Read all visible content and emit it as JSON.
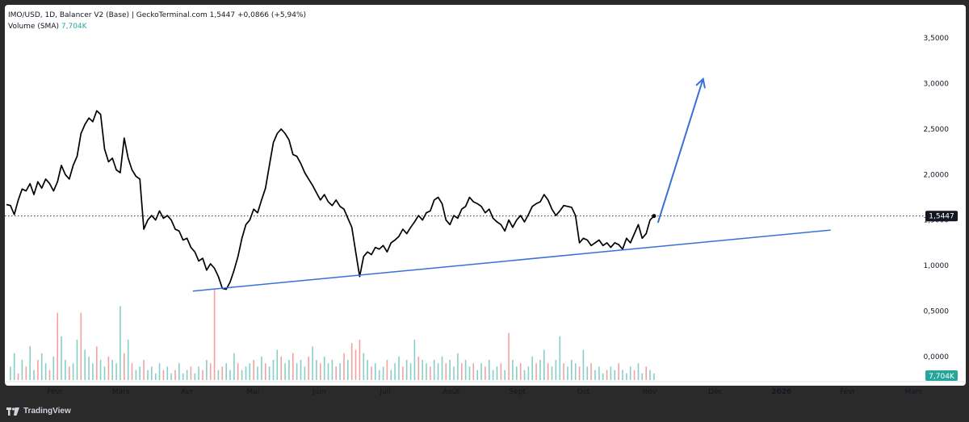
{
  "header": {
    "symbol_line": "IMO/USD, 1D, Balancer V2 (Base) | GeckoTerminal.com",
    "price": "1,5447",
    "change": "+0,0866 (+5,94%)",
    "volume_label": "Volume (SMA)",
    "volume_value": "7,704K"
  },
  "branding": {
    "name": "TradingView"
  },
  "colors": {
    "line": "#000000",
    "trendline": "#3a6fd8",
    "arrow": "#3a6fd8",
    "vol_up": "#26a69a",
    "vol_down": "#ef5350",
    "price_tag_bg": "#131722",
    "vol_tag_bg": "#26a69a"
  },
  "chart_data": {
    "type": "line",
    "y_ticks": [
      "3,5000",
      "3,0000",
      "2,5000",
      "2,0000",
      "1,5000",
      "1,0000",
      "0,5000",
      "0,0000"
    ],
    "y_tick_values": [
      3.5,
      3.0,
      2.5,
      2.0,
      1.5,
      1.0,
      0.5,
      0.0
    ],
    "ylim": [
      -0.25,
      3.75
    ],
    "x_ticks": [
      "Févr",
      "Mars",
      "Avr",
      "Mai",
      "Juin",
      "Juil",
      "Août",
      "Sept",
      "Oct",
      "Nov",
      "Déc",
      "2026",
      "Févr",
      "Mars"
    ],
    "x_tick_bold": [
      false,
      false,
      false,
      false,
      false,
      false,
      false,
      false,
      false,
      false,
      false,
      true,
      false,
      false
    ],
    "last_price_label": "1,5447",
    "last_price": 1.5447,
    "volume_last_label": "7,704K",
    "price_series": [
      [
        0,
        1.67
      ],
      [
        2,
        1.66
      ],
      [
        4,
        1.56
      ],
      [
        6,
        1.72
      ],
      [
        8,
        1.84
      ],
      [
        10,
        1.82
      ],
      [
        12,
        1.9
      ],
      [
        14,
        1.78
      ],
      [
        16,
        1.92
      ],
      [
        18,
        1.85
      ],
      [
        20,
        1.95
      ],
      [
        22,
        1.9
      ],
      [
        24,
        1.82
      ],
      [
        26,
        1.92
      ],
      [
        28,
        2.1
      ],
      [
        30,
        2.0
      ],
      [
        32,
        1.95
      ],
      [
        34,
        2.1
      ],
      [
        36,
        2.2
      ],
      [
        38,
        2.45
      ],
      [
        40,
        2.55
      ],
      [
        42,
        2.62
      ],
      [
        44,
        2.58
      ],
      [
        46,
        2.7
      ],
      [
        48,
        2.66
      ],
      [
        50,
        2.28
      ],
      [
        52,
        2.14
      ],
      [
        54,
        2.18
      ],
      [
        56,
        2.05
      ],
      [
        58,
        2.02
      ],
      [
        60,
        2.4
      ],
      [
        62,
        2.18
      ],
      [
        64,
        2.05
      ],
      [
        66,
        1.98
      ],
      [
        68,
        1.95
      ],
      [
        70,
        1.4
      ],
      [
        72,
        1.5
      ],
      [
        74,
        1.55
      ],
      [
        76,
        1.5
      ],
      [
        78,
        1.6
      ],
      [
        80,
        1.52
      ],
      [
        82,
        1.55
      ],
      [
        84,
        1.5
      ],
      [
        86,
        1.4
      ],
      [
        88,
        1.38
      ],
      [
        90,
        1.28
      ],
      [
        92,
        1.3
      ],
      [
        94,
        1.2
      ],
      [
        96,
        1.15
      ],
      [
        98,
        1.05
      ],
      [
        100,
        1.08
      ],
      [
        102,
        0.95
      ],
      [
        104,
        1.02
      ],
      [
        106,
        0.97
      ],
      [
        108,
        0.88
      ],
      [
        110,
        0.75
      ],
      [
        112,
        0.74
      ],
      [
        114,
        0.82
      ],
      [
        116,
        0.95
      ],
      [
        118,
        1.1
      ],
      [
        120,
        1.3
      ],
      [
        122,
        1.45
      ],
      [
        124,
        1.5
      ],
      [
        126,
        1.62
      ],
      [
        128,
        1.58
      ],
      [
        130,
        1.72
      ],
      [
        132,
        1.85
      ],
      [
        134,
        2.1
      ],
      [
        136,
        2.35
      ],
      [
        138,
        2.45
      ],
      [
        140,
        2.5
      ],
      [
        142,
        2.45
      ],
      [
        144,
        2.38
      ],
      [
        146,
        2.22
      ],
      [
        148,
        2.2
      ],
      [
        150,
        2.12
      ],
      [
        152,
        2.02
      ],
      [
        154,
        1.95
      ],
      [
        156,
        1.88
      ],
      [
        158,
        1.8
      ],
      [
        160,
        1.72
      ],
      [
        162,
        1.78
      ],
      [
        164,
        1.7
      ],
      [
        166,
        1.66
      ],
      [
        168,
        1.72
      ],
      [
        170,
        1.65
      ],
      [
        172,
        1.62
      ],
      [
        174,
        1.52
      ],
      [
        176,
        1.42
      ],
      [
        178,
        1.15
      ],
      [
        180,
        0.88
      ],
      [
        182,
        1.1
      ],
      [
        184,
        1.15
      ],
      [
        186,
        1.12
      ],
      [
        188,
        1.2
      ],
      [
        190,
        1.18
      ],
      [
        192,
        1.22
      ],
      [
        194,
        1.15
      ],
      [
        196,
        1.25
      ],
      [
        198,
        1.28
      ],
      [
        200,
        1.32
      ],
      [
        202,
        1.4
      ],
      [
        204,
        1.35
      ],
      [
        206,
        1.42
      ],
      [
        208,
        1.48
      ],
      [
        210,
        1.55
      ],
      [
        212,
        1.5
      ],
      [
        214,
        1.58
      ],
      [
        216,
        1.6
      ],
      [
        218,
        1.72
      ],
      [
        220,
        1.75
      ],
      [
        222,
        1.68
      ],
      [
        224,
        1.5
      ],
      [
        226,
        1.45
      ],
      [
        228,
        1.55
      ],
      [
        230,
        1.52
      ],
      [
        232,
        1.62
      ],
      [
        234,
        1.65
      ],
      [
        236,
        1.75
      ],
      [
        238,
        1.7
      ],
      [
        240,
        1.68
      ],
      [
        242,
        1.65
      ],
      [
        244,
        1.58
      ],
      [
        246,
        1.62
      ],
      [
        248,
        1.52
      ],
      [
        250,
        1.48
      ],
      [
        252,
        1.45
      ],
      [
        254,
        1.38
      ],
      [
        256,
        1.5
      ],
      [
        258,
        1.42
      ],
      [
        260,
        1.5
      ],
      [
        262,
        1.55
      ],
      [
        264,
        1.48
      ],
      [
        266,
        1.56
      ],
      [
        268,
        1.65
      ],
      [
        270,
        1.68
      ],
      [
        272,
        1.7
      ],
      [
        274,
        1.78
      ],
      [
        276,
        1.72
      ],
      [
        278,
        1.62
      ],
      [
        280,
        1.55
      ],
      [
        282,
        1.6
      ],
      [
        284,
        1.66
      ],
      [
        286,
        1.65
      ],
      [
        288,
        1.64
      ],
      [
        290,
        1.55
      ],
      [
        292,
        1.25
      ],
      [
        294,
        1.3
      ],
      [
        296,
        1.28
      ],
      [
        298,
        1.22
      ],
      [
        300,
        1.25
      ],
      [
        302,
        1.28
      ],
      [
        304,
        1.22
      ],
      [
        306,
        1.25
      ],
      [
        308,
        1.2
      ],
      [
        310,
        1.25
      ],
      [
        312,
        1.23
      ],
      [
        314,
        1.18
      ],
      [
        316,
        1.3
      ],
      [
        318,
        1.25
      ],
      [
        320,
        1.35
      ],
      [
        322,
        1.45
      ],
      [
        324,
        1.3
      ],
      [
        326,
        1.35
      ],
      [
        328,
        1.5
      ],
      [
        330,
        1.5447
      ]
    ],
    "trendline": [
      [
        95,
        0.72
      ],
      [
        420,
        1.39
      ]
    ],
    "arrow": [
      [
        332,
        1.47
      ],
      [
        355,
        3.05
      ]
    ],
    "volume": [
      [
        2,
        0.04,
        1
      ],
      [
        4,
        0.08,
        1
      ],
      [
        6,
        0.02,
        0
      ],
      [
        8,
        0.06,
        1
      ],
      [
        10,
        0.04,
        0
      ],
      [
        12,
        0.1,
        1
      ],
      [
        14,
        0.03,
        1
      ],
      [
        16,
        0.06,
        0
      ],
      [
        18,
        0.08,
        1
      ],
      [
        20,
        0.05,
        1
      ],
      [
        22,
        0.03,
        0
      ],
      [
        24,
        0.07,
        1
      ],
      [
        26,
        0.2,
        0
      ],
      [
        28,
        0.13,
        1
      ],
      [
        30,
        0.06,
        1
      ],
      [
        32,
        0.04,
        0
      ],
      [
        34,
        0.05,
        1
      ],
      [
        36,
        0.12,
        1
      ],
      [
        38,
        0.2,
        0
      ],
      [
        40,
        0.09,
        1
      ],
      [
        42,
        0.07,
        1
      ],
      [
        44,
        0.05,
        1
      ],
      [
        46,
        0.1,
        0
      ],
      [
        48,
        0.06,
        1
      ],
      [
        50,
        0.04,
        1
      ],
      [
        52,
        0.07,
        0
      ],
      [
        54,
        0.06,
        1
      ],
      [
        56,
        0.05,
        1
      ],
      [
        58,
        0.22,
        1
      ],
      [
        60,
        0.08,
        0
      ],
      [
        62,
        0.12,
        1
      ],
      [
        64,
        0.05,
        0
      ],
      [
        66,
        0.03,
        1
      ],
      [
        68,
        0.04,
        1
      ],
      [
        70,
        0.06,
        0
      ],
      [
        72,
        0.03,
        1
      ],
      [
        74,
        0.04,
        1
      ],
      [
        76,
        0.02,
        1
      ],
      [
        78,
        0.05,
        1
      ],
      [
        80,
        0.03,
        0
      ],
      [
        82,
        0.04,
        1
      ],
      [
        84,
        0.02,
        1
      ],
      [
        86,
        0.03,
        0
      ],
      [
        88,
        0.05,
        1
      ],
      [
        90,
        0.02,
        1
      ],
      [
        92,
        0.03,
        1
      ],
      [
        94,
        0.04,
        0
      ],
      [
        96,
        0.02,
        1
      ],
      [
        98,
        0.04,
        1
      ],
      [
        100,
        0.03,
        0
      ],
      [
        102,
        0.06,
        1
      ],
      [
        104,
        0.05,
        0
      ],
      [
        106,
        0.27,
        0
      ],
      [
        108,
        0.03,
        1
      ],
      [
        110,
        0.04,
        0
      ],
      [
        112,
        0.05,
        1
      ],
      [
        114,
        0.03,
        1
      ],
      [
        116,
        0.08,
        1
      ],
      [
        118,
        0.05,
        0
      ],
      [
        120,
        0.03,
        1
      ],
      [
        122,
        0.04,
        1
      ],
      [
        124,
        0.05,
        1
      ],
      [
        126,
        0.06,
        0
      ],
      [
        128,
        0.04,
        1
      ],
      [
        130,
        0.07,
        1
      ],
      [
        132,
        0.05,
        0
      ],
      [
        134,
        0.04,
        1
      ],
      [
        136,
        0.06,
        1
      ],
      [
        138,
        0.09,
        1
      ],
      [
        140,
        0.07,
        0
      ],
      [
        142,
        0.05,
        1
      ],
      [
        144,
        0.06,
        1
      ],
      [
        146,
        0.08,
        0
      ],
      [
        148,
        0.05,
        1
      ],
      [
        150,
        0.06,
        1
      ],
      [
        152,
        0.04,
        1
      ],
      [
        154,
        0.07,
        0
      ],
      [
        156,
        0.1,
        1
      ],
      [
        158,
        0.06,
        1
      ],
      [
        160,
        0.05,
        0
      ],
      [
        162,
        0.07,
        1
      ],
      [
        164,
        0.05,
        1
      ],
      [
        166,
        0.06,
        1
      ],
      [
        168,
        0.04,
        0
      ],
      [
        170,
        0.05,
        1
      ],
      [
        172,
        0.08,
        0
      ],
      [
        174,
        0.06,
        1
      ],
      [
        176,
        0.11,
        0
      ],
      [
        178,
        0.09,
        0
      ],
      [
        180,
        0.12,
        0
      ],
      [
        182,
        0.08,
        1
      ],
      [
        184,
        0.06,
        1
      ],
      [
        186,
        0.04,
        0
      ],
      [
        188,
        0.05,
        1
      ],
      [
        190,
        0.03,
        1
      ],
      [
        192,
        0.04,
        1
      ],
      [
        194,
        0.06,
        0
      ],
      [
        196,
        0.03,
        1
      ],
      [
        198,
        0.05,
        1
      ],
      [
        200,
        0.07,
        1
      ],
      [
        202,
        0.04,
        0
      ],
      [
        204,
        0.06,
        1
      ],
      [
        206,
        0.05,
        1
      ],
      [
        208,
        0.12,
        1
      ],
      [
        210,
        0.07,
        0
      ],
      [
        212,
        0.06,
        1
      ],
      [
        214,
        0.05,
        1
      ],
      [
        216,
        0.04,
        0
      ],
      [
        218,
        0.06,
        1
      ],
      [
        220,
        0.05,
        1
      ],
      [
        222,
        0.07,
        1
      ],
      [
        224,
        0.05,
        0
      ],
      [
        226,
        0.06,
        1
      ],
      [
        228,
        0.04,
        1
      ],
      [
        230,
        0.08,
        1
      ],
      [
        232,
        0.05,
        0
      ],
      [
        234,
        0.06,
        1
      ],
      [
        236,
        0.04,
        1
      ],
      [
        238,
        0.05,
        0
      ],
      [
        240,
        0.03,
        1
      ],
      [
        242,
        0.05,
        1
      ],
      [
        244,
        0.04,
        0
      ],
      [
        246,
        0.06,
        1
      ],
      [
        248,
        0.03,
        1
      ],
      [
        250,
        0.04,
        1
      ],
      [
        252,
        0.05,
        0
      ],
      [
        254,
        0.03,
        1
      ],
      [
        256,
        0.14,
        0
      ],
      [
        258,
        0.06,
        1
      ],
      [
        260,
        0.04,
        1
      ],
      [
        262,
        0.05,
        0
      ],
      [
        264,
        0.03,
        1
      ],
      [
        266,
        0.04,
        1
      ],
      [
        268,
        0.07,
        1
      ],
      [
        270,
        0.05,
        0
      ],
      [
        272,
        0.06,
        1
      ],
      [
        274,
        0.09,
        1
      ],
      [
        276,
        0.05,
        0
      ],
      [
        278,
        0.04,
        1
      ],
      [
        280,
        0.06,
        1
      ],
      [
        282,
        0.13,
        1
      ],
      [
        284,
        0.05,
        0
      ],
      [
        286,
        0.04,
        1
      ],
      [
        288,
        0.06,
        1
      ],
      [
        290,
        0.05,
        1
      ],
      [
        292,
        0.04,
        0
      ],
      [
        294,
        0.09,
        1
      ],
      [
        296,
        0.04,
        1
      ],
      [
        298,
        0.05,
        0
      ],
      [
        300,
        0.03,
        1
      ],
      [
        302,
        0.04,
        1
      ],
      [
        304,
        0.02,
        1
      ],
      [
        306,
        0.03,
        0
      ],
      [
        308,
        0.04,
        1
      ],
      [
        310,
        0.03,
        1
      ],
      [
        312,
        0.05,
        0
      ],
      [
        314,
        0.03,
        1
      ],
      [
        316,
        0.02,
        1
      ],
      [
        318,
        0.04,
        1
      ],
      [
        320,
        0.03,
        0
      ],
      [
        322,
        0.05,
        1
      ],
      [
        324,
        0.02,
        1
      ],
      [
        326,
        0.04,
        0
      ],
      [
        328,
        0.03,
        1
      ],
      [
        330,
        0.02,
        1
      ]
    ]
  }
}
